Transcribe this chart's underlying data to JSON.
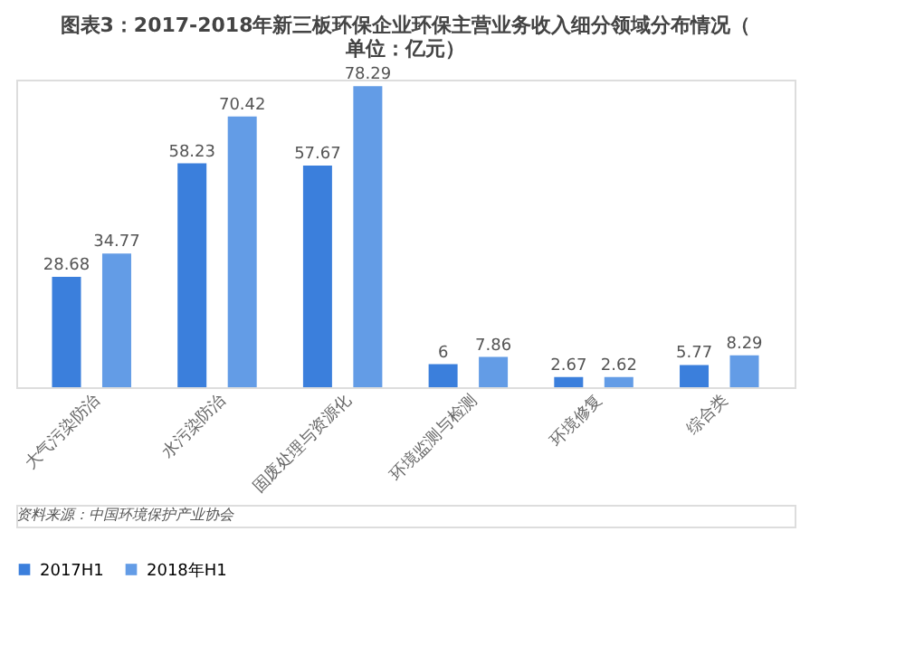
{
  "chart_data": {
    "type": "bar",
    "title": "图表3：2017-2018年新三板环保企业环保主营业务收入细分领域分布情况（单位：亿元）",
    "categories": [
      "大气污染防治",
      "水污染防治",
      "固废处理与资源化",
      "环境监测与检测",
      "环境修复",
      "综合类"
    ],
    "series": [
      {
        "name": "2017H1",
        "color": "#3b7fdc",
        "values": [
          28.68,
          58.23,
          57.67,
          6,
          2.67,
          5.77
        ]
      },
      {
        "name": "2018年H1",
        "color": "#639ce6",
        "values": [
          34.77,
          70.42,
          78.29,
          7.86,
          2.62,
          8.29
        ]
      }
    ],
    "data_labels": true,
    "grid": false,
    "legend": "bottom",
    "annotations": [
      "资料来源：中国环境保护产业协会"
    ]
  }
}
